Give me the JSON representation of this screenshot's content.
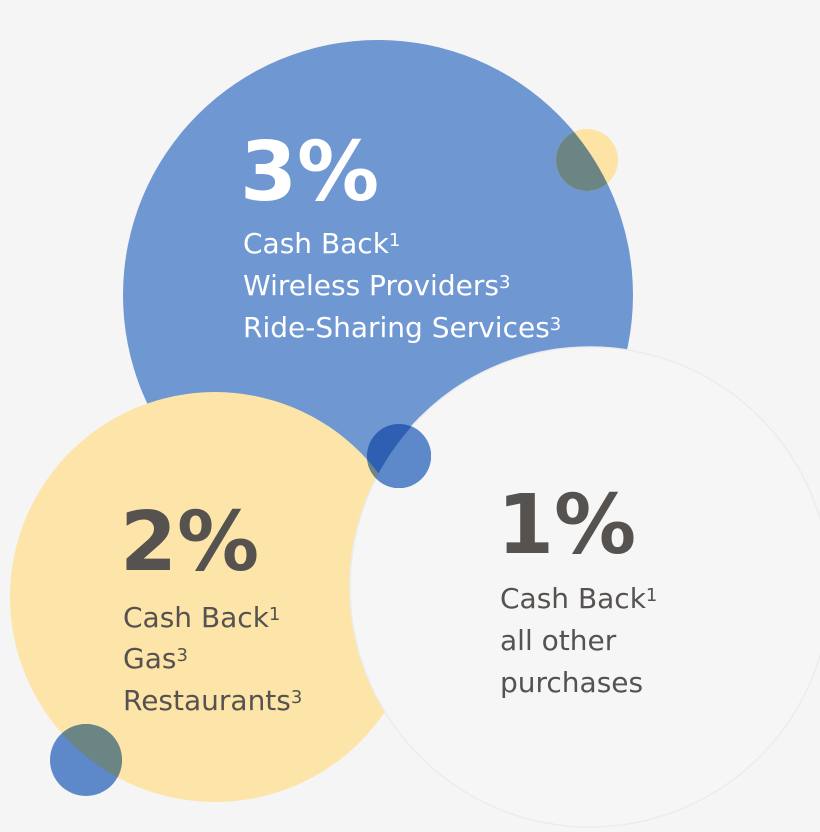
{
  "tiers": [
    {
      "rate": "3%",
      "lines": [
        {
          "text": "Cash Back",
          "sup": "1"
        },
        {
          "text": "Wireless Providers",
          "sup": "3"
        },
        {
          "text": "Ride-Sharing Services",
          "sup": "3"
        }
      ]
    },
    {
      "rate": "2%",
      "lines": [
        {
          "text": "Cash Back",
          "sup": "1"
        },
        {
          "text": "Gas",
          "sup": "3"
        },
        {
          "text": "Restaurants",
          "sup": "3"
        }
      ]
    },
    {
      "rate": "1%",
      "lines": [
        {
          "text": "Cash Back",
          "sup": "1"
        },
        {
          "text": "all other"
        },
        {
          "text": "purchases"
        }
      ]
    }
  ]
}
